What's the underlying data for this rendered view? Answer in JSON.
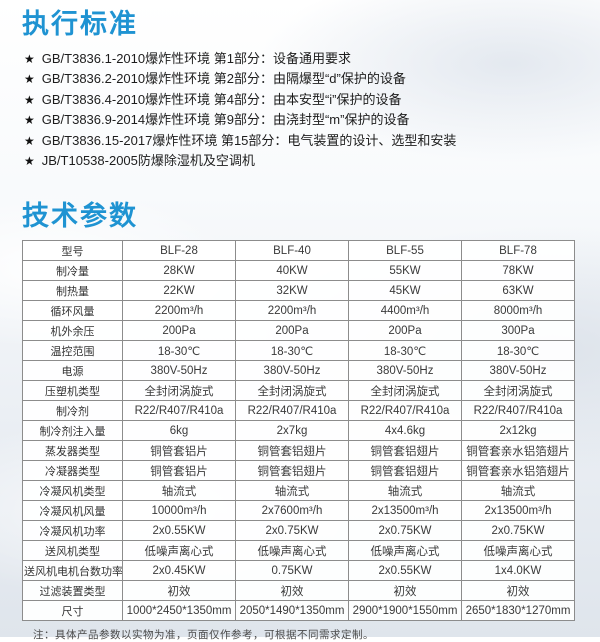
{
  "standards": {
    "title": "执行标准",
    "bullet": "★",
    "items": [
      "GB/T3836.1-2010爆炸性环境 第1部分：设备通用要求",
      "GB/T3836.2-2010爆炸性环境 第2部分：由隔爆型“d”保护的设备",
      "GB/T3836.4-2010爆炸性环境 第4部分：由本安型“i”保护的设备",
      "GB/T3836.9-2014爆炸性环境 第9部分：由浇封型“m”保护的设备",
      "GB/T3836.15-2017爆炸性环境 第15部分：电气装置的设计、选型和安装",
      "JB/T10538-2005防爆除湿机及空调机"
    ]
  },
  "specs": {
    "title": "技术参数",
    "table": {
      "rows": [
        {
          "label": "型号",
          "values": [
            "BLF-28",
            "BLF-40",
            "BLF-55",
            "BLF-78"
          ]
        },
        {
          "label": "制冷量",
          "values": [
            "28KW",
            "40KW",
            "55KW",
            "78KW"
          ]
        },
        {
          "label": "制热量",
          "values": [
            "22KW",
            "32KW",
            "45KW",
            "63KW"
          ]
        },
        {
          "label": "循环风量",
          "values": [
            "2200m³/h",
            "2200m³/h",
            "4400m³/h",
            "8000m³/h"
          ]
        },
        {
          "label": "机外余压",
          "values": [
            "200Pa",
            "200Pa",
            "200Pa",
            "300Pa"
          ]
        },
        {
          "label": "温控范围",
          "values": [
            "18-30℃",
            "18-30℃",
            "18-30℃",
            "18-30℃"
          ]
        },
        {
          "label": "电源",
          "values": [
            "380V-50Hz",
            "380V-50Hz",
            "380V-50Hz",
            "380V-50Hz"
          ]
        },
        {
          "label": "压塑机类型",
          "values": [
            "全封闭涡旋式",
            "全封闭涡旋式",
            "全封闭涡旋式",
            "全封闭涡旋式"
          ]
        },
        {
          "label": "制冷剂",
          "values": [
            "R22/R407/R410a",
            "R22/R407/R410a",
            "R22/R407/R410a",
            "R22/R407/R410a"
          ]
        },
        {
          "label": "制冷剂注入量",
          "values": [
            "6kg",
            "2x7kg",
            "4x4.6kg",
            "2x12kg"
          ]
        },
        {
          "label": "蒸发器类型",
          "values": [
            "铜管套铝片",
            "铜管套铝翅片",
            "铜管套铝翅片",
            "铜管套亲水铝箔翅片"
          ]
        },
        {
          "label": "冷凝器类型",
          "values": [
            "铜管套铝片",
            "铜管套铝翅片",
            "铜管套铝翅片",
            "铜管套亲水铝箔翅片"
          ]
        },
        {
          "label": "冷凝风机类型",
          "values": [
            "轴流式",
            "轴流式",
            "轴流式",
            "轴流式"
          ]
        },
        {
          "label": "冷凝风机风量",
          "values": [
            "10000m³/h",
            "2x7600m³/h",
            "2x13500m³/h",
            "2x13500m³/h"
          ]
        },
        {
          "label": "冷凝风机功率",
          "values": [
            "2x0.55KW",
            "2x0.75KW",
            "2x0.75KW",
            "2x0.75KW"
          ]
        },
        {
          "label": "送风机类型",
          "values": [
            "低噪声离心式",
            "低噪声离心式",
            "低噪声离心式",
            "低噪声离心式"
          ]
        },
        {
          "label": "送风机电机台数功率",
          "values": [
            "2x0.45KW",
            "0.75KW",
            "2x0.55KW",
            "1x4.0KW"
          ]
        },
        {
          "label": "过滤装置类型",
          "values": [
            "初效",
            "初效",
            "初效",
            "初效"
          ]
        },
        {
          "label": "尺寸",
          "values": [
            "1000*2450*1350mm",
            "2050*1490*1350mm",
            "2900*1900*1550mm",
            "2650*1830*1270mm"
          ]
        }
      ]
    },
    "note": "注：具体产品参数以实物为准，页面仅作参考，可根据不同需求定制。"
  },
  "colors": {
    "accent_blue": "#1f93d2",
    "table_border": "#8c8c8c",
    "body_text": "#1d1d1d"
  }
}
